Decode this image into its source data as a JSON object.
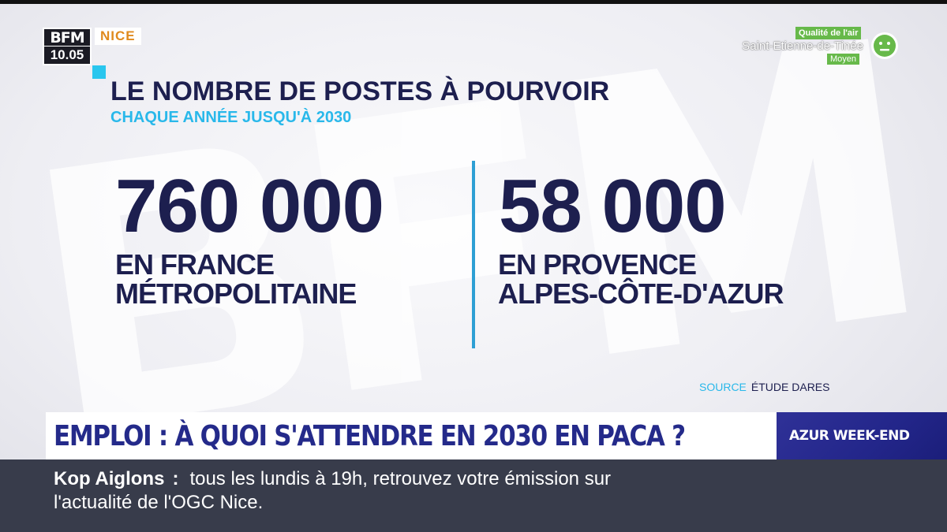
{
  "channel": {
    "logo_text": "BFM",
    "time": "10.05",
    "city": "NICE"
  },
  "air_quality": {
    "label": "Qualité de l'air",
    "city": "Saint-Etienne-de-Tinée",
    "level": "Moyen",
    "color": "#67b94a",
    "icon": "neutral-face-icon"
  },
  "graphic": {
    "title": "LE NOMBRE DE POSTES À POURVOIR",
    "subtitle": "CHAQUE ANNÉE JUSQU'À 2030",
    "stats": [
      {
        "value": "760 000",
        "region_line1": "EN FRANCE",
        "region_line2": "MÉTROPOLITAINE"
      },
      {
        "value": "58 000",
        "region_line1": "EN PROVENCE",
        "region_line2": "ALPES-CÔTE-D'AZUR"
      }
    ],
    "source_label": "SOURCE",
    "source_value": "ÉTUDE DARES"
  },
  "headline": {
    "text": "EMPLOI : À QUOI S'ATTENDRE EN 2030 EN PACA ?",
    "program": "AZUR WEEK-END"
  },
  "ticker": {
    "label": "Kop Aiglons",
    "separator": ":",
    "line1": "tous les lundis à 19h, retrouvez votre émission sur",
    "line2": "l'actualité de l'OGC Nice."
  },
  "colors": {
    "navy": "#1d1f4f",
    "cyan": "#29b8ea",
    "headline_blue": "#242a8a",
    "ticker_bg": "#383c4b",
    "accent_orange": "#e08a1e"
  }
}
